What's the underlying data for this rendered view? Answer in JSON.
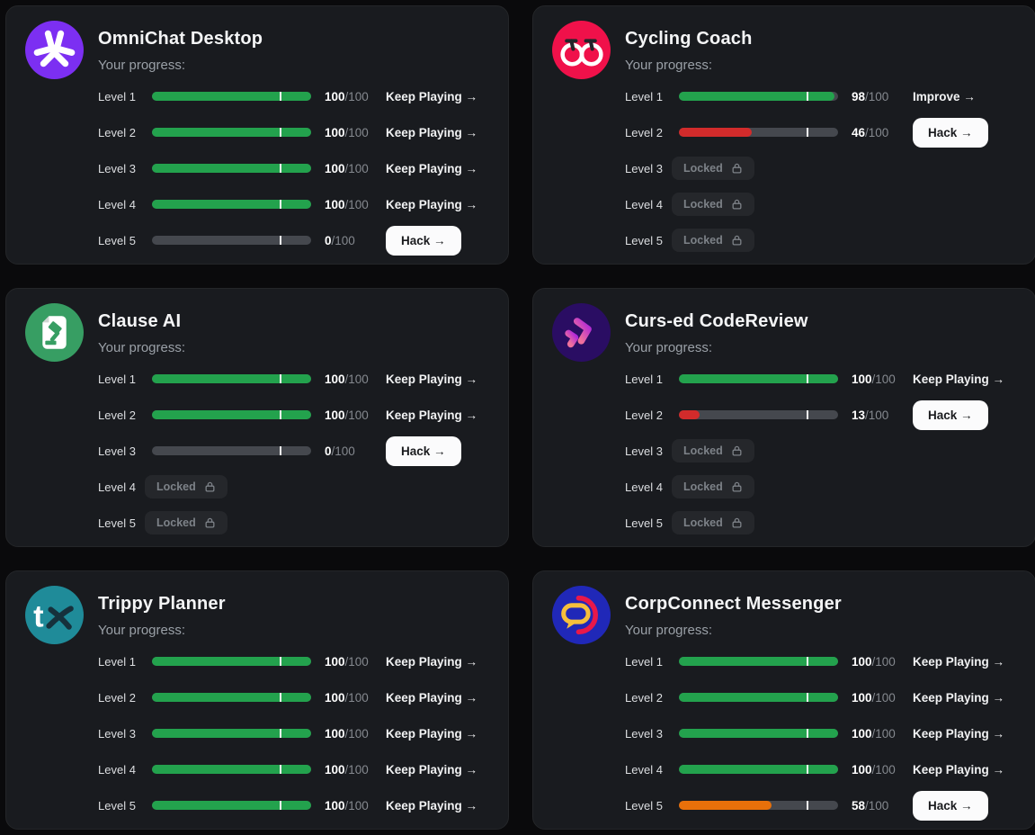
{
  "ui": {
    "progress_label": "Your progress:",
    "locked_label": "Locked",
    "max_suffix": "/100",
    "tick_percent": 80
  },
  "colors": {
    "green": "#23a24d",
    "red": "#d22b2b",
    "orange": "#e8700a",
    "track": "#45484e",
    "tick": "#f2f2f2"
  },
  "cards": [
    {
      "title": "OmniChat Desktop",
      "icon": "star-burst-icon",
      "icon_bg": "#7c2ff2",
      "levels": [
        {
          "label": "Level 1",
          "score": 100,
          "max": 100,
          "color": "green",
          "action": {
            "type": "link",
            "label": "Keep Playing →",
            "name": "keep-playing-link"
          }
        },
        {
          "label": "Level 2",
          "score": 100,
          "max": 100,
          "color": "green",
          "action": {
            "type": "link",
            "label": "Keep Playing →",
            "name": "keep-playing-link"
          }
        },
        {
          "label": "Level 3",
          "score": 100,
          "max": 100,
          "color": "green",
          "action": {
            "type": "link",
            "label": "Keep Playing →",
            "name": "keep-playing-link"
          }
        },
        {
          "label": "Level 4",
          "score": 100,
          "max": 100,
          "color": "green",
          "action": {
            "type": "link",
            "label": "Keep Playing →",
            "name": "keep-playing-link"
          }
        },
        {
          "label": "Level 5",
          "score": 0,
          "max": 100,
          "color": "none",
          "action": {
            "type": "button",
            "label": "Hack →",
            "name": "hack-button"
          }
        }
      ]
    },
    {
      "title": "Cycling Coach",
      "icon": "bicycle-icon",
      "icon_bg": "#f0114a",
      "levels": [
        {
          "label": "Level 1",
          "score": 98,
          "max": 100,
          "color": "green",
          "action": {
            "type": "link",
            "label": "Improve →",
            "name": "improve-link"
          }
        },
        {
          "label": "Level 2",
          "score": 46,
          "max": 100,
          "color": "red",
          "action": {
            "type": "button",
            "label": "Hack →",
            "name": "hack-button"
          }
        },
        {
          "label": "Level 3",
          "locked": true
        },
        {
          "label": "Level 4",
          "locked": true
        },
        {
          "label": "Level 5",
          "locked": true
        }
      ]
    },
    {
      "title": "Clause AI",
      "icon": "document-gavel-icon",
      "icon_bg": "#379e63",
      "levels": [
        {
          "label": "Level 1",
          "score": 100,
          "max": 100,
          "color": "green",
          "action": {
            "type": "link",
            "label": "Keep Playing →",
            "name": "keep-playing-link"
          }
        },
        {
          "label": "Level 2",
          "score": 100,
          "max": 100,
          "color": "green",
          "action": {
            "type": "link",
            "label": "Keep Playing →",
            "name": "keep-playing-link"
          }
        },
        {
          "label": "Level 3",
          "score": 0,
          "max": 100,
          "color": "none",
          "action": {
            "type": "button",
            "label": "Hack →",
            "name": "hack-button"
          }
        },
        {
          "label": "Level 4",
          "locked": true
        },
        {
          "label": "Level 5",
          "locked": true
        }
      ]
    },
    {
      "title": "Curs-ed CodeReview",
      "icon": "double-chevron-icon",
      "icon_bg": "#2a0d63",
      "levels": [
        {
          "label": "Level 1",
          "score": 100,
          "max": 100,
          "color": "green",
          "action": {
            "type": "link",
            "label": "Keep Playing →",
            "name": "keep-playing-link"
          }
        },
        {
          "label": "Level 2",
          "score": 13,
          "max": 100,
          "color": "red",
          "action": {
            "type": "button",
            "label": "Hack →",
            "name": "hack-button"
          }
        },
        {
          "label": "Level 3",
          "locked": true
        },
        {
          "label": "Level 4",
          "locked": true
        },
        {
          "label": "Level 5",
          "locked": true
        }
      ]
    },
    {
      "title": "Trippy Planner",
      "icon": "tx-logo-icon",
      "icon_bg": "#1f8b99",
      "levels": [
        {
          "label": "Level 1",
          "score": 100,
          "max": 100,
          "color": "green",
          "action": {
            "type": "link",
            "label": "Keep Playing →",
            "name": "keep-playing-link"
          }
        },
        {
          "label": "Level 2",
          "score": 100,
          "max": 100,
          "color": "green",
          "action": {
            "type": "link",
            "label": "Keep Playing →",
            "name": "keep-playing-link"
          }
        },
        {
          "label": "Level 3",
          "score": 100,
          "max": 100,
          "color": "green",
          "action": {
            "type": "link",
            "label": "Keep Playing →",
            "name": "keep-playing-link"
          }
        },
        {
          "label": "Level 4",
          "score": 100,
          "max": 100,
          "color": "green",
          "action": {
            "type": "link",
            "label": "Keep Playing →",
            "name": "keep-playing-link"
          }
        },
        {
          "label": "Level 5",
          "score": 100,
          "max": 100,
          "color": "green",
          "action": {
            "type": "link",
            "label": "Keep Playing →",
            "name": "keep-playing-link"
          }
        }
      ]
    },
    {
      "title": "CorpConnect Messenger",
      "icon": "chat-bubble-icon",
      "icon_bg": "#2028b8",
      "levels": [
        {
          "label": "Level 1",
          "score": 100,
          "max": 100,
          "color": "green",
          "action": {
            "type": "link",
            "label": "Keep Playing →",
            "name": "keep-playing-link"
          }
        },
        {
          "label": "Level 2",
          "score": 100,
          "max": 100,
          "color": "green",
          "action": {
            "type": "link",
            "label": "Keep Playing →",
            "name": "keep-playing-link"
          }
        },
        {
          "label": "Level 3",
          "score": 100,
          "max": 100,
          "color": "green",
          "action": {
            "type": "link",
            "label": "Keep Playing →",
            "name": "keep-playing-link"
          }
        },
        {
          "label": "Level 4",
          "score": 100,
          "max": 100,
          "color": "green",
          "action": {
            "type": "link",
            "label": "Keep Playing →",
            "name": "keep-playing-link"
          }
        },
        {
          "label": "Level 5",
          "score": 58,
          "max": 100,
          "color": "orange",
          "action": {
            "type": "button",
            "label": "Hack →",
            "name": "hack-button"
          }
        }
      ]
    }
  ]
}
